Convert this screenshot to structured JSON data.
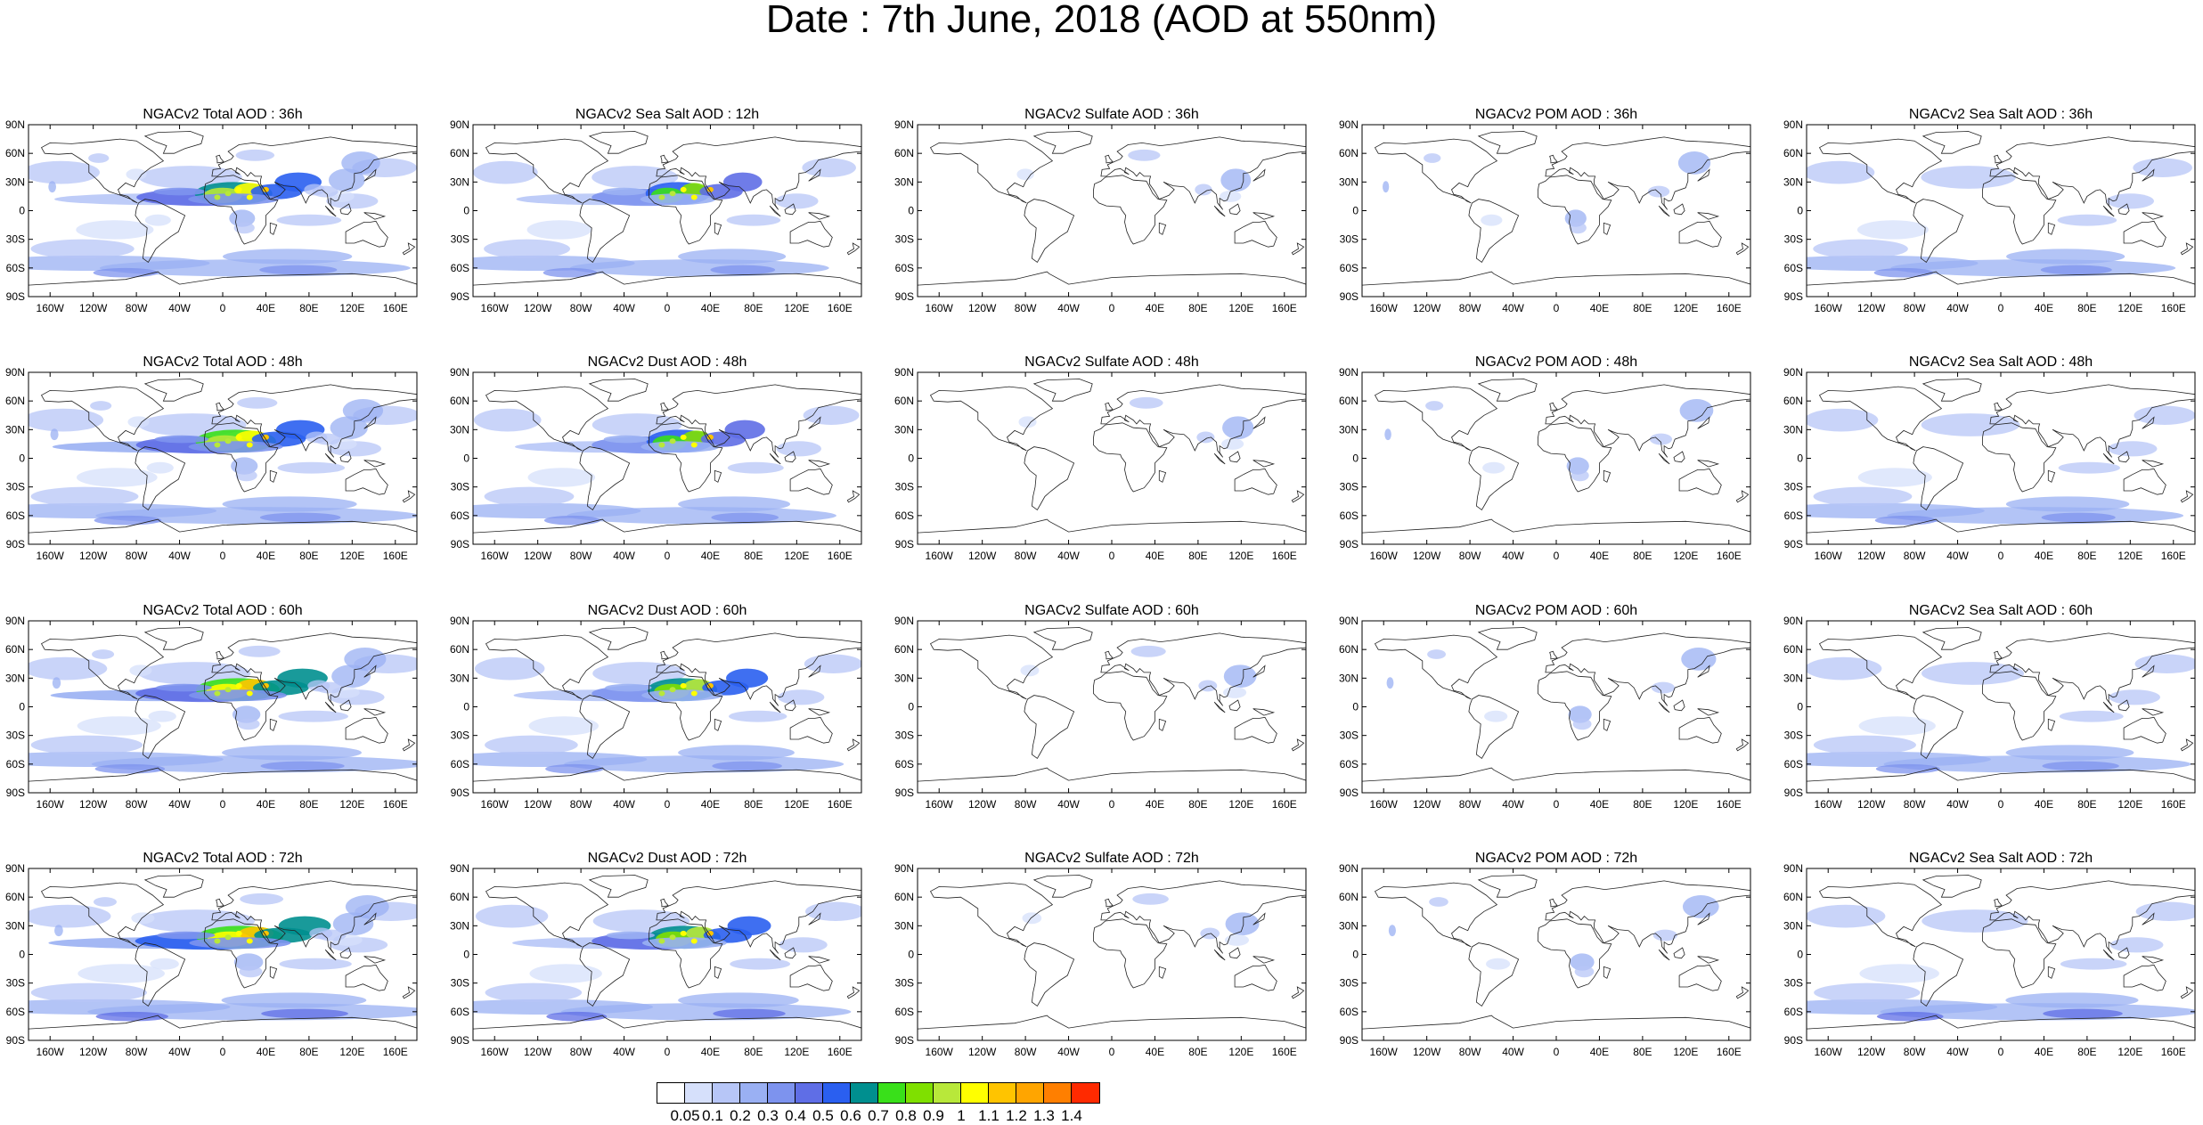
{
  "title": "Date : 7th June, 2018 (AOD at 550nm)",
  "lat_labels": [
    "90N",
    "60N",
    "30N",
    "0",
    "30S",
    "60S",
    "90S"
  ],
  "lon_labels": [
    "160W",
    "120W",
    "80W",
    "40W",
    "0",
    "40E",
    "80E",
    "120E",
    "160E"
  ],
  "panels": [
    [
      "NGACv2 Total AOD : 36h",
      "NGACv2 Sea Salt  AOD : 12h",
      "NGACv2 Sulfate AOD : 36h",
      "NGACv2 POM AOD : 36h",
      "NGACv2 Sea Salt AOD : 36h"
    ],
    [
      "NGACv2 Total AOD : 48h",
      "NGACv2 Dust AOD : 48h",
      "NGACv2 Sulfate AOD : 48h",
      "NGACv2 POM AOD : 48h",
      "NGACv2 Sea Salt AOD : 48h"
    ],
    [
      "NGACv2 Total AOD : 60h",
      "NGACv2 Dust AOD : 60h",
      "NGACv2 Sulfate AOD : 60h",
      "NGACv2 POM AOD : 60h",
      "NGACv2 Sea Salt AOD : 60h"
    ],
    [
      "NGACv2 Total AOD : 72h",
      "NGACv2 Dust AOD : 72h",
      "NGACv2 Sulfate AOD : 72h",
      "NGACv2 POM AOD : 72h",
      "NGACv2 Sea Salt  AOD : 72h"
    ]
  ],
  "colorbar": {
    "labels": [
      "0.05",
      "0.1",
      "0.2",
      "0.3",
      "0.4",
      "0.5",
      "0.6",
      "0.7",
      "0.8",
      "0.9",
      "1",
      "1.1",
      "1.2",
      "1.3",
      "1.4"
    ],
    "colors": [
      "#ffffff",
      "#d6e0fb",
      "#b7c6f7",
      "#9ab0f3",
      "#7d93ee",
      "#5f6ee6",
      "#2a5ff0",
      "#008f8f",
      "#39e01a",
      "#7fe000",
      "#b8e83a",
      "#ffff00",
      "#ffc400",
      "#ffa500",
      "#ff7f00",
      "#ff2a00"
    ]
  }
}
